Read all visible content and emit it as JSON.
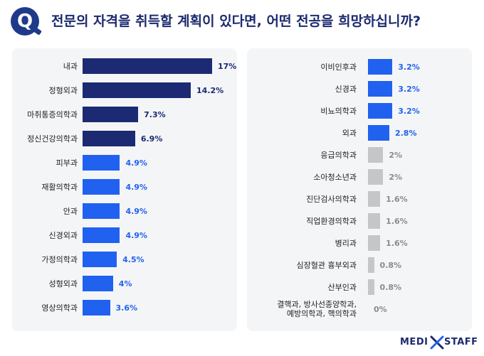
{
  "header": {
    "badge": "Q",
    "title": "전문의 자격을 취득할 계획이 있다면, 어떤 전공을 희망하십니까?"
  },
  "colors": {
    "navy": "#1b2a72",
    "blue": "#2161f0",
    "gray": "#c5c6c8",
    "title": "#1c2a6e"
  },
  "chart_data": [
    {
      "type": "bar",
      "orientation": "horizontal",
      "categories": [
        "내과",
        "정형외과",
        "마취통증의학과",
        "정신건강의학과",
        "피부과",
        "재활의학과",
        "안과",
        "신경외과",
        "가정의학과",
        "성형외과",
        "영상의학과"
      ],
      "values": [
        17,
        14.2,
        7.3,
        6.9,
        4.9,
        4.9,
        4.9,
        4.9,
        4.5,
        4,
        3.6
      ],
      "value_labels": [
        "17%",
        "14.2%",
        "7.3%",
        "6.9%",
        "4.9%",
        "4.9%",
        "4.9%",
        "4.9%",
        "4.5%",
        "4%",
        "3.6%"
      ],
      "bar_colors": [
        "navy",
        "navy",
        "navy",
        "navy",
        "blue",
        "blue",
        "blue",
        "blue",
        "blue",
        "blue",
        "blue"
      ],
      "xlim": [
        0,
        18.5
      ],
      "grid": false
    },
    {
      "type": "bar",
      "orientation": "horizontal",
      "categories": [
        "이비인후과",
        "신경과",
        "비뇨의학과",
        "외과",
        "응급의학과",
        "소아청소년과",
        "진단검사의학과",
        "직업환경의학과",
        "병리과",
        "심장혈관 흉부외과",
        "산부인과",
        "결핵과, 방사선종양학과,\n예방의학과, 핵의학과"
      ],
      "values": [
        3.2,
        3.2,
        3.2,
        2.8,
        2,
        2,
        1.6,
        1.6,
        1.6,
        0.8,
        0.8,
        0
      ],
      "value_labels": [
        "3.2%",
        "3.2%",
        "3.2%",
        "2.8%",
        "2%",
        "2%",
        "1.6%",
        "1.6%",
        "1.6%",
        "0.8%",
        "0.8%",
        "0%"
      ],
      "bar_colors": [
        "blue",
        "blue",
        "blue",
        "blue",
        "gray",
        "gray",
        "gray",
        "gray",
        "gray",
        "gray",
        "gray",
        "gray"
      ],
      "xlim": [
        0,
        18.5
      ],
      "grid": false
    }
  ],
  "footer": {
    "brand_left": "MEDI",
    "brand_right": "STAFF"
  }
}
